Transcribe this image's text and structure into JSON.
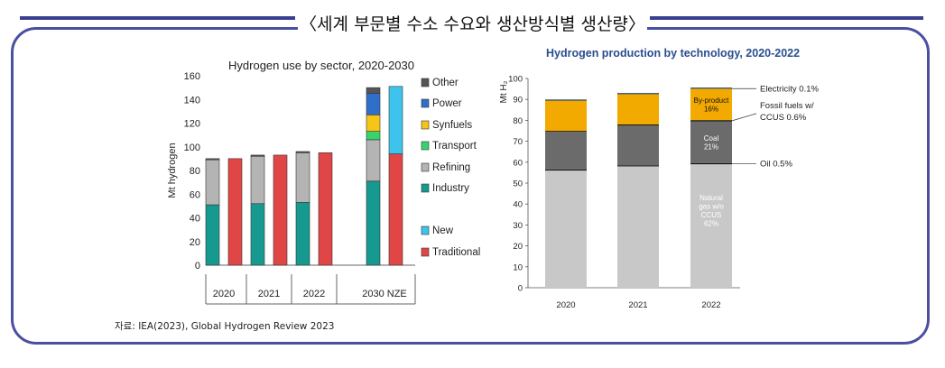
{
  "banner_title": "〈세계 부문별 수소 수요와 생산방식별 생산량〉",
  "source_note": "자료: IEA(2023), Global Hydrogen Review 2023",
  "colors": {
    "frame": "#4a4fa0",
    "banner_line": "#3a3f8f"
  },
  "chart_data": [
    {
      "type": "bar",
      "title": "Hydrogen use by sector, 2020-2030",
      "ylabel": "Mt hydrogen",
      "ylim": [
        0,
        160
      ],
      "yticks": [
        "0",
        "20",
        "40",
        "60",
        "80",
        "100",
        "120",
        "140",
        "160"
      ],
      "categories": [
        "2020",
        "2021",
        "2022",
        "2030 NZE"
      ],
      "colors": {
        "Industry": "#169a8f",
        "Refining": "#b4b4b4",
        "Transport": "#37d46e",
        "Synfuels": "#f5c518",
        "Power": "#2f6fc9",
        "Other": "#555555",
        "New": "#3ec4ec",
        "Traditional": "#e04646"
      },
      "legend": [
        "Other",
        "Power",
        "Synfuels",
        "Transport",
        "Refining",
        "Industry",
        "New",
        "Traditional"
      ],
      "series": [
        {
          "name": "Industry",
          "stack": "sector",
          "values": [
            51,
            52,
            53,
            71
          ]
        },
        {
          "name": "Refining",
          "stack": "sector",
          "values": [
            38,
            40,
            42,
            35
          ]
        },
        {
          "name": "Transport",
          "stack": "sector",
          "values": [
            0,
            0,
            0,
            7
          ]
        },
        {
          "name": "Synfuels",
          "stack": "sector",
          "values": [
            0,
            0,
            0,
            14
          ]
        },
        {
          "name": "Power",
          "stack": "sector",
          "values": [
            0,
            0,
            0,
            18
          ]
        },
        {
          "name": "Other",
          "stack": "sector",
          "values": [
            1,
            1,
            1,
            5
          ]
        },
        {
          "name": "Traditional",
          "stack": "origin",
          "values": [
            90,
            93,
            95,
            94
          ]
        },
        {
          "name": "New",
          "stack": "origin",
          "values": [
            0,
            0,
            0,
            57
          ]
        }
      ]
    },
    {
      "type": "bar",
      "title": "Hydrogen production by technology, 2020-2022",
      "ylabel": "Mt H₂",
      "ylim": [
        0,
        100
      ],
      "yticks": [
        "0",
        "10",
        "20",
        "30",
        "40",
        "50",
        "60",
        "70",
        "80",
        "90",
        "100"
      ],
      "categories": [
        "2020",
        "2021",
        "2022"
      ],
      "colors": {
        "Natural gas w/o CCUS": "#c8c8c8",
        "Oil": "#111111",
        "Coal": "#6b6b6b",
        "Fossil fuels w/ CCUS": "#111111",
        "By-product": "#f2a900",
        "Electricity": "#1e3a5f"
      },
      "series": [
        {
          "name": "Natural gas w/o CCUS",
          "values": [
            56,
            58,
            59
          ]
        },
        {
          "name": "Oil",
          "values": [
            0.5,
            0.5,
            0.5
          ]
        },
        {
          "name": "Coal",
          "values": [
            18,
            19,
            20
          ]
        },
        {
          "name": "Fossil fuels w/ CCUS",
          "values": [
            0.4,
            0.5,
            0.6
          ]
        },
        {
          "name": "By-product",
          "values": [
            14.5,
            14.5,
            15
          ]
        },
        {
          "name": "Electricity",
          "values": [
            0.1,
            0.1,
            0.1
          ]
        }
      ],
      "inside_labels": [
        {
          "series": "By-product",
          "lines": [
            "By-product",
            "16%"
          ]
        },
        {
          "series": "Coal",
          "lines": [
            "Coal",
            "21%"
          ]
        },
        {
          "series": "Natural gas w/o CCUS",
          "lines": [
            "Natural",
            "gas w/o",
            "CCUS",
            "62%"
          ]
        }
      ],
      "callouts": [
        {
          "series": "Electricity",
          "lines": [
            "Electricity 0.1%"
          ]
        },
        {
          "series": "Fossil fuels w/ CCUS",
          "lines": [
            "Fossil fuels w/",
            "CCUS 0.6%"
          ]
        },
        {
          "series": "Oil",
          "lines": [
            "Oil 0.5%"
          ]
        }
      ]
    }
  ]
}
